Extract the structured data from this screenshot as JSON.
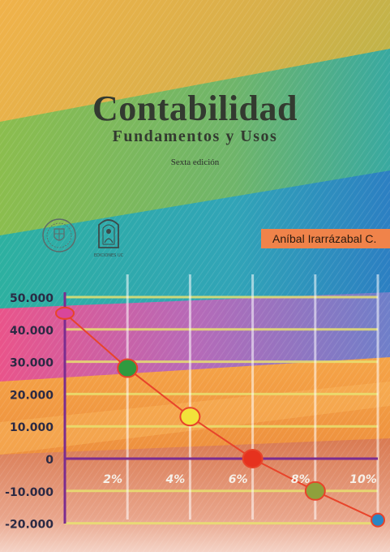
{
  "book": {
    "title": "Contabilidad",
    "subtitle": "Fundamentos y Usos",
    "edition": "Sexta edición",
    "author": "Aníbal Irarrázabal C.",
    "publisher_logo_text": "EDICIONES UC"
  },
  "colors": {
    "title": "#333a30",
    "author_box": "#f0834a",
    "axis": "#7b2c8f",
    "line": "#e8442a",
    "gridline": "#e8e070"
  },
  "chart_data": {
    "type": "line",
    "title": "",
    "xlabel": "",
    "ylabel": "",
    "x": [
      0,
      2,
      4,
      6,
      8,
      10
    ],
    "x_tick_labels": [
      "2%",
      "4%",
      "6%",
      "8%",
      "10%"
    ],
    "y_tick_labels": [
      "50.000",
      "40.000",
      "30.000",
      "20.000",
      "10.000",
      "0",
      "-10.000",
      "-20.000"
    ],
    "y_ticks": [
      50000,
      40000,
      30000,
      20000,
      10000,
      0,
      -10000,
      -20000
    ],
    "ylim": [
      -20000,
      50000
    ],
    "xlim": [
      0,
      10
    ],
    "series": [
      {
        "values": [
          45000,
          28000,
          13000,
          0,
          -10000,
          -19000
        ],
        "marker_colors": [
          "#d9469a",
          "#2f9a3f",
          "#f2e23a",
          "#e6321e",
          "#8fa03c",
          "#2a86c4"
        ]
      }
    ],
    "grid": true
  }
}
